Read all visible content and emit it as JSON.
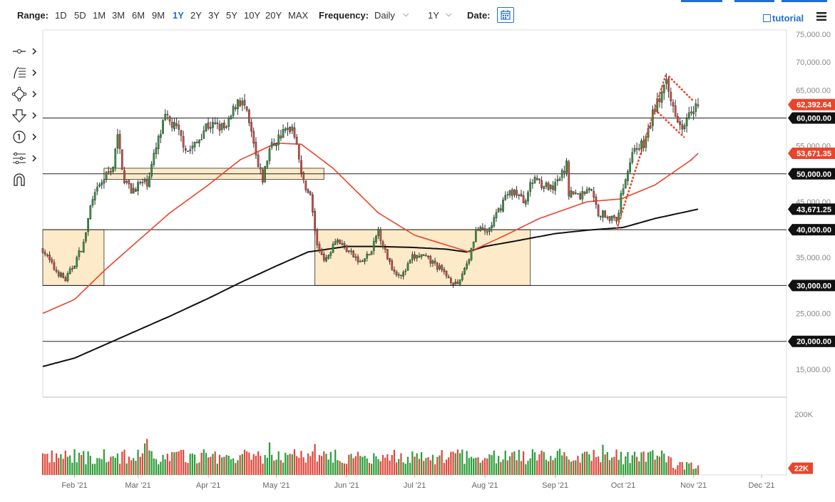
{
  "toolbar": {
    "range_label": "Range:",
    "ranges": [
      "1D",
      "5D",
      "1M",
      "3M",
      "6M",
      "9M",
      "1Y",
      "2Y",
      "3Y",
      "5Y",
      "10Y",
      "20Y",
      "MAX"
    ],
    "active_range": "1Y",
    "frequency_label": "Frequency:",
    "frequency_value": "Daily",
    "period_value": "1Y",
    "date_label": "Date:",
    "tutorial_label": "tutorial"
  },
  "left_tools": [
    "crosshair-tool",
    "fibonacci-tool",
    "shapes-tool",
    "arrow-tool",
    "counter-tool",
    "pattern-tool",
    "magnet-tool"
  ],
  "colors": {
    "up": "#2e9d3a",
    "down": "#e0473c",
    "ma50": "#e8452c",
    "ma200": "#111111",
    "box_fill": "#fde6c0",
    "box_stroke": "#555555",
    "flag": "#e8452c",
    "price_badge": "#e8452c",
    "accent": "#1f6fd1"
  },
  "chart_data": {
    "type": "candlestick",
    "y_axis": {
      "min": 10000,
      "max": 75000,
      "ticks": [
        15000,
        20000,
        25000,
        30000,
        35000,
        40000,
        45000,
        50000,
        55000,
        60000,
        65000,
        70000,
        75000
      ],
      "tick_labels": [
        "15,000.00",
        "20,000.00",
        "25,000.00",
        "30,000.00",
        "35,000.00",
        "40,000.00",
        "45,000.00",
        "50,000.00",
        "55,000.00",
        "60,000.00",
        "65,000.00",
        "70,000.00",
        "75,000.00"
      ]
    },
    "x_axis": {
      "start": "2021-01-18",
      "end": "2021-12-12",
      "month_labels": [
        {
          "date": "2021-02-01",
          "label": "Feb '21"
        },
        {
          "date": "2021-03-01",
          "label": "Mar '21"
        },
        {
          "date": "2021-04-01",
          "label": "Apr '21"
        },
        {
          "date": "2021-05-01",
          "label": "May '21"
        },
        {
          "date": "2021-06-01",
          "label": "Jun '21"
        },
        {
          "date": "2021-07-01",
          "label": "Jul '21"
        },
        {
          "date": "2021-08-01",
          "label": "Aug '21"
        },
        {
          "date": "2021-09-01",
          "label": "Sep '21"
        },
        {
          "date": "2021-10-01",
          "label": "Oct '21"
        },
        {
          "date": "2021-11-01",
          "label": "Nov '21"
        },
        {
          "date": "2021-12-01",
          "label": "Dec '21"
        }
      ]
    },
    "last_date": "2021-11-03",
    "price_anchors": [
      [
        "2021-01-18",
        36500
      ],
      [
        "2021-01-23",
        33000
      ],
      [
        "2021-01-28",
        31000
      ],
      [
        "2021-02-01",
        34000
      ],
      [
        "2021-02-05",
        37500
      ],
      [
        "2021-02-08",
        44000
      ],
      [
        "2021-02-11",
        47000
      ],
      [
        "2021-02-14",
        49000
      ],
      [
        "2021-02-18",
        51500
      ],
      [
        "2021-02-20",
        56500
      ],
      [
        "2021-02-23",
        49000
      ],
      [
        "2021-02-26",
        47000
      ],
      [
        "2021-03-01",
        48000
      ],
      [
        "2021-03-05",
        48500
      ],
      [
        "2021-03-10",
        56000
      ],
      [
        "2021-03-13",
        60000
      ],
      [
        "2021-03-18",
        58000
      ],
      [
        "2021-03-23",
        54000
      ],
      [
        "2021-03-27",
        55500
      ],
      [
        "2021-03-31",
        58700
      ],
      [
        "2021-04-05",
        58500
      ],
      [
        "2021-04-09",
        58000
      ],
      [
        "2021-04-14",
        63500
      ],
      [
        "2021-04-17",
        62000
      ],
      [
        "2021-04-20",
        57000
      ],
      [
        "2021-04-23",
        51000
      ],
      [
        "2021-04-25",
        49000
      ],
      [
        "2021-04-28",
        54500
      ],
      [
        "2021-05-03",
        57000
      ],
      [
        "2021-05-08",
        58500
      ],
      [
        "2021-05-10",
        56000
      ],
      [
        "2021-05-12",
        49500
      ],
      [
        "2021-05-16",
        46000
      ],
      [
        "2021-05-19",
        37000
      ],
      [
        "2021-05-23",
        34500
      ],
      [
        "2021-05-27",
        38500
      ],
      [
        "2021-06-01",
        36500
      ],
      [
        "2021-06-07",
        34000
      ],
      [
        "2021-06-12",
        36000
      ],
      [
        "2021-06-15",
        40000
      ],
      [
        "2021-06-18",
        36000
      ],
      [
        "2021-06-22",
        32500
      ],
      [
        "2021-06-26",
        32000
      ],
      [
        "2021-06-30",
        35000
      ],
      [
        "2021-07-04",
        35300
      ],
      [
        "2021-07-10",
        33800
      ],
      [
        "2021-07-15",
        31800
      ],
      [
        "2021-07-20",
        29800
      ],
      [
        "2021-07-22",
        32200
      ],
      [
        "2021-07-25",
        35000
      ],
      [
        "2021-07-28",
        40000
      ],
      [
        "2021-08-02",
        39500
      ],
      [
        "2021-08-06",
        42500
      ],
      [
        "2021-08-10",
        46000
      ],
      [
        "2021-08-14",
        47000
      ],
      [
        "2021-08-18",
        45000
      ],
      [
        "2021-08-23",
        49500
      ],
      [
        "2021-08-27",
        48000
      ],
      [
        "2021-08-31",
        47000
      ],
      [
        "2021-09-06",
        51500
      ],
      [
        "2021-09-07",
        46800
      ],
      [
        "2021-09-12",
        46000
      ],
      [
        "2021-09-16",
        47800
      ],
      [
        "2021-09-20",
        43000
      ],
      [
        "2021-09-24",
        42700
      ],
      [
        "2021-09-28",
        41200
      ],
      [
        "2021-10-01",
        48000
      ],
      [
        "2021-10-06",
        55000
      ],
      [
        "2021-10-10",
        55000
      ],
      [
        "2021-10-15",
        62000
      ],
      [
        "2021-10-20",
        65800
      ],
      [
        "2021-10-22",
        63000
      ],
      [
        "2021-10-27",
        58500
      ],
      [
        "2021-10-30",
        61800
      ],
      [
        "2021-11-03",
        62392
      ]
    ],
    "ma50_anchors": [
      [
        "2021-01-18",
        25000
      ],
      [
        "2021-02-01",
        27500
      ],
      [
        "2021-02-15",
        33000
      ],
      [
        "2021-03-01",
        38000
      ],
      [
        "2021-03-15",
        43000
      ],
      [
        "2021-04-01",
        48000
      ],
      [
        "2021-04-15",
        52500
      ],
      [
        "2021-05-01",
        55500
      ],
      [
        "2021-05-12",
        55300
      ],
      [
        "2021-05-26",
        51000
      ],
      [
        "2021-06-15",
        43000
      ],
      [
        "2021-07-01",
        39000
      ],
      [
        "2021-07-25",
        36000
      ],
      [
        "2021-08-10",
        39000
      ],
      [
        "2021-08-25",
        42000
      ],
      [
        "2021-09-15",
        45000
      ],
      [
        "2021-09-30",
        45500
      ],
      [
        "2021-10-15",
        48000
      ],
      [
        "2021-10-31",
        52500
      ],
      [
        "2021-11-03",
        53671
      ]
    ],
    "ma200_anchors": [
      [
        "2021-01-18",
        15500
      ],
      [
        "2021-02-01",
        17000
      ],
      [
        "2021-02-15",
        19500
      ],
      [
        "2021-03-01",
        22000
      ],
      [
        "2021-03-15",
        24500
      ],
      [
        "2021-04-01",
        27700
      ],
      [
        "2021-04-15",
        30500
      ],
      [
        "2021-05-01",
        33500
      ],
      [
        "2021-05-15",
        36000
      ],
      [
        "2021-06-01",
        37000
      ],
      [
        "2021-06-15",
        37000
      ],
      [
        "2021-07-01",
        36800
      ],
      [
        "2021-07-15",
        36500
      ],
      [
        "2021-07-24",
        36000
      ],
      [
        "2021-08-01",
        37000
      ],
      [
        "2021-08-15",
        38000
      ],
      [
        "2021-09-01",
        39300
      ],
      [
        "2021-09-15",
        39900
      ],
      [
        "2021-10-01",
        40400
      ],
      [
        "2021-10-15",
        42000
      ],
      [
        "2021-11-03",
        43671
      ]
    ],
    "horizontal_lines": [
      60000,
      50000,
      40000,
      30000,
      20000
    ],
    "zones": [
      {
        "x1": "2021-01-18",
        "x2": "2021-02-14",
        "y_low": 30000,
        "y_high": 40000
      },
      {
        "x1": "2021-02-14",
        "x2": "2021-05-22",
        "y_low": 49000,
        "y_high": 51000
      },
      {
        "x1": "2021-05-18",
        "x2": "2021-08-21",
        "y_low": 30000,
        "y_high": 40000
      }
    ],
    "flag_lines": [
      [
        [
          "2021-09-28",
          40000
        ],
        [
          "2021-10-20",
          68000
        ]
      ],
      [
        [
          "2021-10-21",
          67500
        ],
        [
          "2021-11-01",
          63000
        ]
      ],
      [
        [
          "2021-10-15",
          61500
        ],
        [
          "2021-10-28",
          56500
        ]
      ]
    ],
    "price_badges": [
      {
        "value": 62392.64,
        "label": "62,392.64",
        "kind": "price"
      },
      {
        "value": 60000,
        "label": "60,000.00",
        "kind": "level"
      },
      {
        "value": 53671.35,
        "label": "53,671.35",
        "kind": "ma50"
      },
      {
        "value": 50000,
        "label": "50,000.00",
        "kind": "level"
      },
      {
        "value": 43671.25,
        "label": "43,671.25",
        "kind": "ma200"
      },
      {
        "value": 40000,
        "label": "40,000.00",
        "kind": "level"
      },
      {
        "value": 30000,
        "label": "30,000.00",
        "kind": "level"
      },
      {
        "value": 20000,
        "label": "20,000.00",
        "kind": "level"
      }
    ],
    "volume": {
      "max": 250000,
      "tick_label": "200K",
      "tick_value": 200000,
      "last_label": "22K",
      "last_value": 22000
    }
  }
}
